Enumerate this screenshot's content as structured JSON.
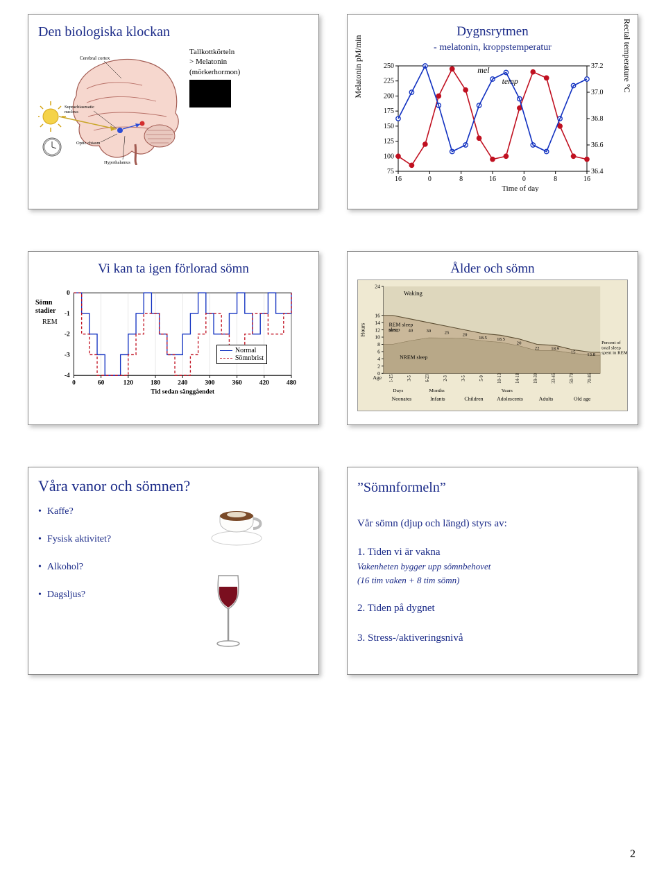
{
  "page_number": "2",
  "panel1": {
    "title": "Den biologiska klockan",
    "pineal_lines": [
      "Tallkottkörteln",
      "> Melatonin",
      "(mörkerhormon)"
    ],
    "brain_labels": {
      "cortex": "Cerebral cortex",
      "scn": "Suprachiasmatic\nnucleus",
      "optic": "Optic chiasm",
      "hypo": "Hypothalamus"
    }
  },
  "panel2": {
    "title": "Dygnsrytmen",
    "subtitle": "- melatonin, kroppstemperatur",
    "y_left_label": "Melatonin pM/min",
    "y_right_label": "Rectal temperature °C",
    "x_label": "Time of day",
    "y_left_ticks": [
      75,
      100,
      125,
      150,
      175,
      200,
      225,
      250
    ],
    "y_right_ticks": [
      36.4,
      36.6,
      36.8,
      37.0,
      37.2
    ],
    "x_ticks": [
      16,
      0,
      8,
      16,
      0,
      8,
      16
    ],
    "legend_mel": "mel",
    "legend_temp": "temp",
    "mel": [
      100,
      85,
      120,
      200,
      245,
      210,
      130,
      95,
      100,
      180,
      240,
      230,
      150,
      100,
      95
    ],
    "temp": [
      36.8,
      37.0,
      37.2,
      36.9,
      36.55,
      36.6,
      36.9,
      37.1,
      37.15,
      36.95,
      36.6,
      36.55,
      36.8,
      37.05,
      37.1
    ],
    "colors": {
      "mel": "#c01020",
      "temp": "#1030c0",
      "axis": "#000000"
    }
  },
  "panel3": {
    "title": "Vi kan ta igen förlorad sömn",
    "y_label_top": "Sömn",
    "y_label_bottom": "stadier",
    "rem_label": "REM",
    "y_ticks": [
      0,
      -1,
      -2,
      -3,
      -4
    ],
    "x_ticks": [
      0,
      60,
      120,
      180,
      240,
      300,
      360,
      420,
      480
    ],
    "x_label": "Tid sedan sänggåendet",
    "legend_normal": "Normal",
    "legend_deprived": "Sömnbrist",
    "colors": {
      "normal": "#1030c0",
      "deprived": "#c01020",
      "grid": "#666"
    },
    "normal_y": [
      0,
      -1,
      -2,
      -3,
      -4,
      -4,
      -3,
      -2,
      -1,
      0,
      -1,
      -2,
      -3,
      -3,
      -2,
      -1,
      0,
      -1,
      -2,
      -2,
      -1,
      0,
      -1,
      -2,
      -1,
      0,
      -1,
      -1,
      0
    ],
    "deprived_y": [
      0,
      -2,
      -3,
      -4,
      -4,
      -4,
      -4,
      -3,
      -2,
      -1,
      -1,
      -2,
      -3,
      -4,
      -4,
      -3,
      -2,
      -1,
      -1,
      -2,
      -3,
      -3,
      -2,
      -1,
      -1,
      -2,
      -2,
      -1,
      0
    ]
  },
  "panel4": {
    "title": "Ålder och sömn",
    "waking": "Waking",
    "rem": "REM sleep",
    "nrem": "NREM sleep",
    "percent_label": "Percent of total sleep spent in REM",
    "y_label": "Hours",
    "age_label": "Age",
    "row_labels": [
      "Days",
      "Months",
      "",
      "Years",
      "",
      ""
    ],
    "group_labels": [
      "Neonates",
      "Infants",
      "Children",
      "Adolescents",
      "Adults",
      "Old age"
    ],
    "y_ticks": [
      0,
      2,
      4,
      6,
      8,
      10,
      12,
      14,
      16,
      24
    ],
    "x_ticks": [
      "1-15",
      "3-5",
      "6-23",
      "2-3",
      "3-5",
      "5-9",
      "10-13",
      "14-18",
      "19-30",
      "33-45",
      "50-70",
      "70-85"
    ],
    "rem_pct": [
      "50%",
      "40",
      "30",
      "25",
      "20",
      "18.5",
      "18.5",
      "20",
      "22",
      "18.9",
      "15",
      "13.8"
    ]
  },
  "panel5": {
    "title": "Våra vanor och sömnen?",
    "items": [
      "Kaffe?",
      "Fysisk aktivitet?",
      "Alkohol?",
      "Dagsljus?"
    ]
  },
  "panel6": {
    "quote_title": "”Sömnformeln”",
    "lead": "Vår sömn (djup och längd) styrs av:",
    "item1_head": "1.  Tiden vi är vakna",
    "item1_sub1": "Vakenheten bygger upp sömnbehovet",
    "item1_sub2": "(16 tim vaken + 8 tim sömn)",
    "item2": "2.  Tiden på dygnet",
    "item3": "3.  Stress-/aktiveringsnivå"
  }
}
